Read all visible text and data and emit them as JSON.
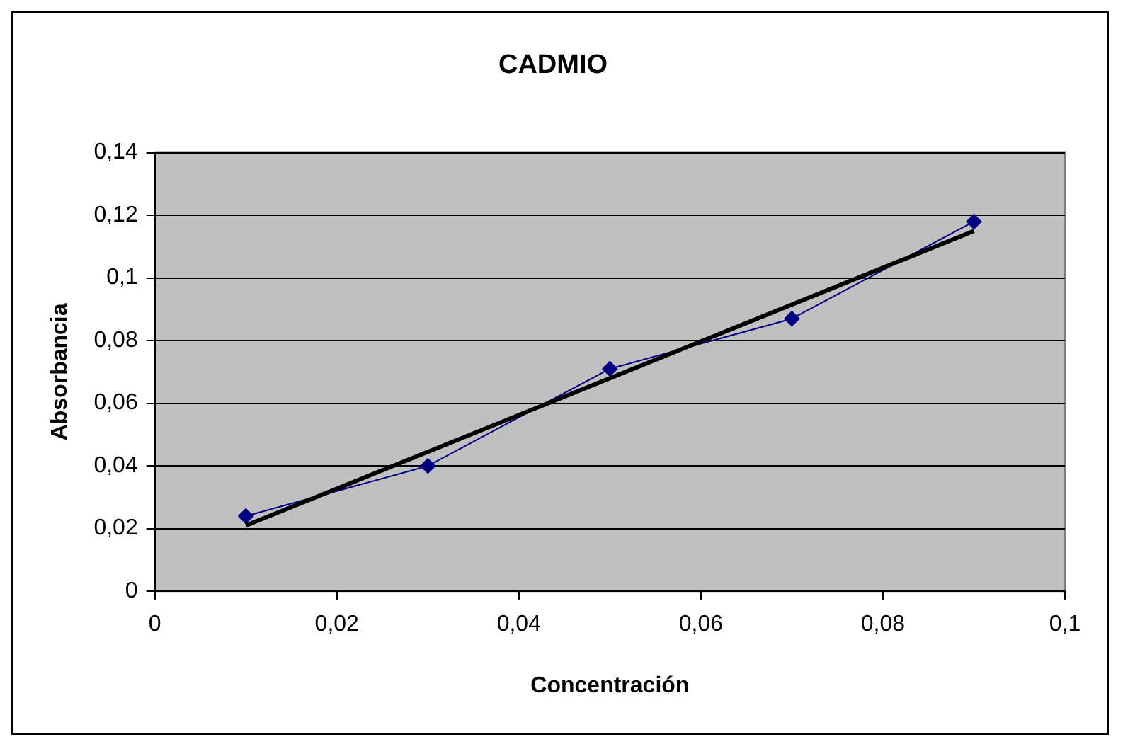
{
  "chart_data": {
    "type": "line",
    "title": "CADMIO",
    "xlabel": "Concentración",
    "ylabel": "Absorbancia",
    "xlim": [
      0,
      0.1
    ],
    "xticks": [
      0,
      {
        "value": 0.02,
        "label": "0,02"
      },
      {
        "value": 0.04,
        "label": "0,04"
      },
      {
        "value": 0.06,
        "label": "0,06"
      },
      {
        "value": 0.08,
        "label": "0,08"
      },
      {
        "value": 0.1,
        "label": "0,1"
      }
    ],
    "ylim": [
      0,
      0.14
    ],
    "yticks": [
      0,
      {
        "value": 0.02,
        "label": "0,02"
      },
      {
        "value": 0.04,
        "label": "0,04"
      },
      {
        "value": 0.06,
        "label": "0,06"
      },
      {
        "value": 0.08,
        "label": "0,08"
      },
      {
        "value": 0.1,
        "label": "0,1"
      },
      {
        "value": 0.12,
        "label": "0,12"
      },
      {
        "value": 0.14,
        "label": "0,14"
      }
    ],
    "grid": "y",
    "legend": false,
    "series": [
      {
        "color": "#000080",
        "marker": "diamond",
        "line_style": "solid",
        "x": [
          0.01,
          0.03,
          0.05,
          0.07,
          0.09
        ],
        "values": [
          0.024,
          0.04,
          0.071,
          0.087,
          0.118
        ]
      },
      {
        "color": "#000000",
        "marker": "none",
        "line_style": "solid",
        "x": [
          0.01,
          0.09
        ],
        "values": [
          0.021,
          0.115
        ]
      }
    ]
  }
}
